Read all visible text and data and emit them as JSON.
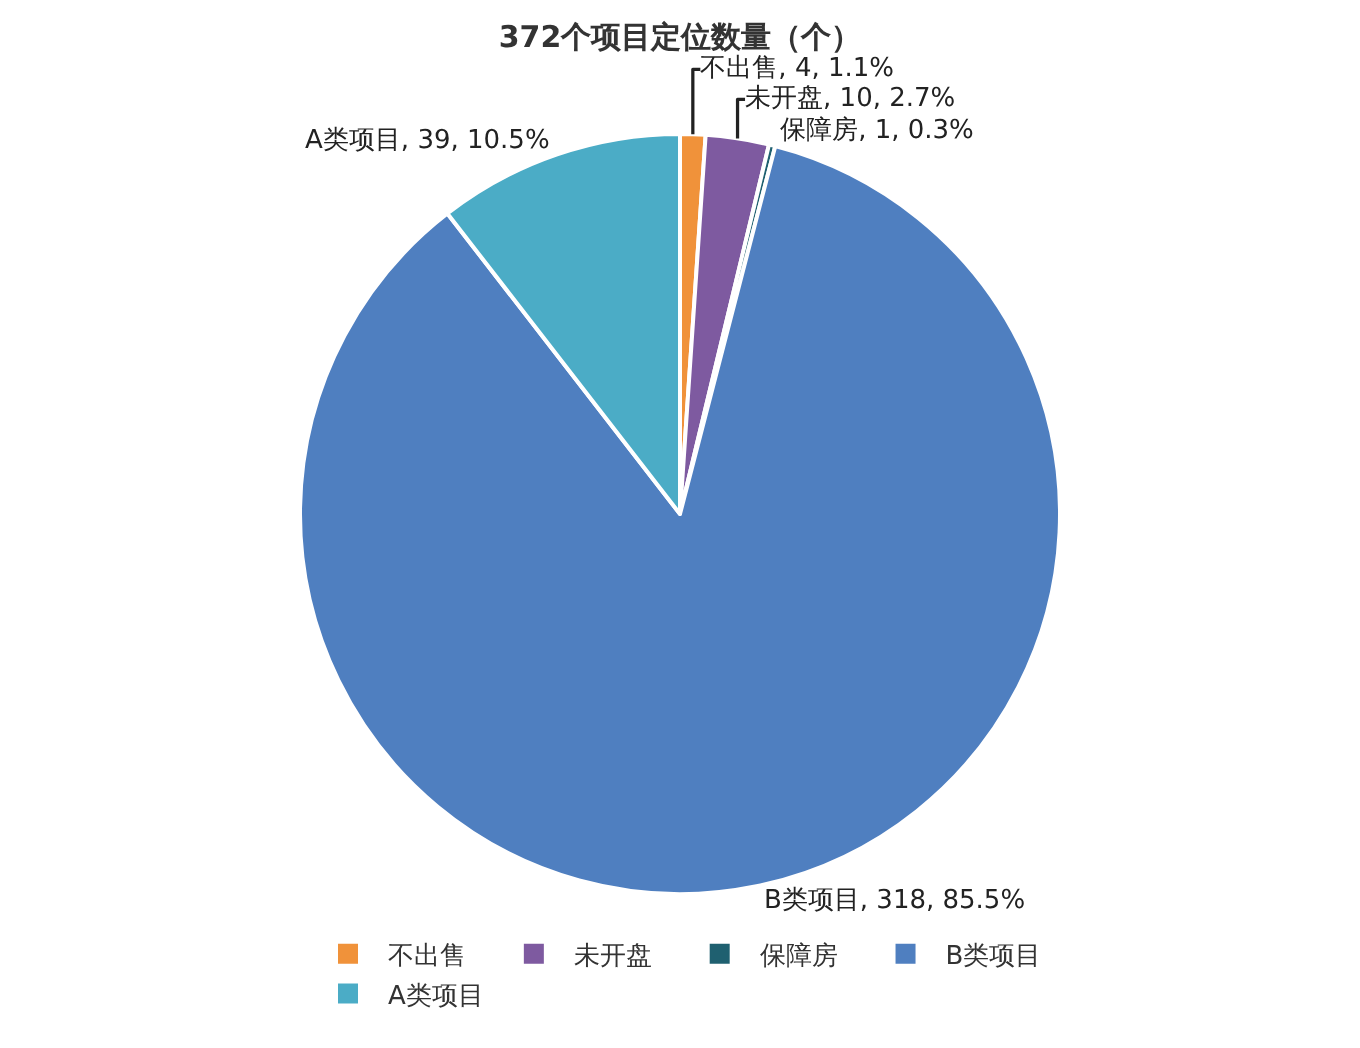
{
  "chart_data": {
    "type": "pie",
    "title": "372个项目定位数量（个）",
    "categories": [
      "不出售",
      "未开盘",
      "保障房",
      "B类项目",
      "A类项目"
    ],
    "values": [
      4,
      10,
      1,
      318,
      39
    ],
    "colors": [
      "#f0923a",
      "#7e5aa0",
      "#1f6070",
      "#4f7fc0",
      "#4bacc6"
    ],
    "value_labels": [
      "不出售, 4, 1.1%",
      "未开盘, 10, 2.7%",
      "保障房, 1, 0.3%",
      "B类项目, 318, 85.5%",
      "A类项目, 39, 10.5%"
    ],
    "legend": "bottom"
  }
}
